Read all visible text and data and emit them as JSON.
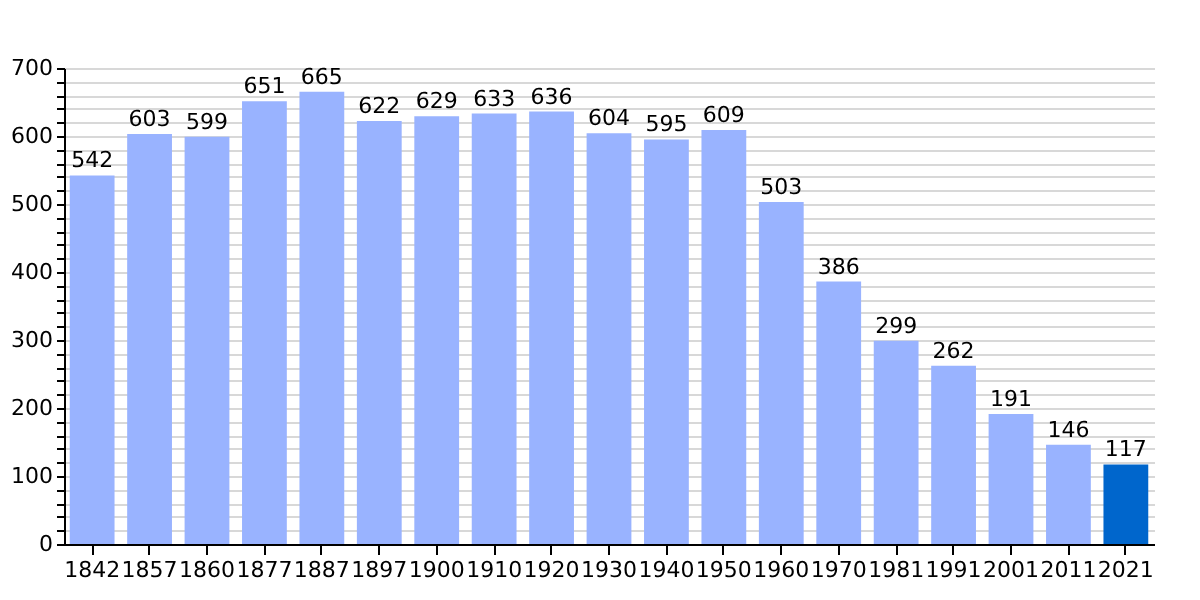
{
  "chart_data": {
    "type": "bar",
    "categories": [
      "1842",
      "1857",
      "1860",
      "1877",
      "1887",
      "1897",
      "1900",
      "1910",
      "1920",
      "1930",
      "1940",
      "1950",
      "1960",
      "1970",
      "1981",
      "1991",
      "2001",
      "2011",
      "2021"
    ],
    "values": [
      542,
      603,
      599,
      651,
      665,
      622,
      629,
      633,
      636,
      604,
      595,
      609,
      503,
      386,
      299,
      262,
      191,
      146,
      117
    ],
    "colors": [
      "#99b3ff",
      "#99b3ff",
      "#99b3ff",
      "#99b3ff",
      "#99b3ff",
      "#99b3ff",
      "#99b3ff",
      "#99b3ff",
      "#99b3ff",
      "#99b3ff",
      "#99b3ff",
      "#99b3ff",
      "#99b3ff",
      "#99b3ff",
      "#99b3ff",
      "#99b3ff",
      "#99b3ff",
      "#99b3ff",
      "#0066cc"
    ],
    "ylim": [
      0,
      700
    ],
    "yticks": [
      0,
      {
        "value": 20,
        "label": null
      },
      {
        "value": 40,
        "label": null
      },
      {
        "value": 60,
        "label": null
      },
      {
        "value": 80,
        "label": null
      },
      100,
      {
        "value": 120,
        "label": null
      },
      {
        "value": 140,
        "label": null
      },
      {
        "value": 160,
        "label": null
      },
      {
        "value": 180,
        "label": null
      },
      200,
      {
        "value": 220,
        "label": null
      },
      {
        "value": 240,
        "label": null
      },
      {
        "value": 260,
        "label": null
      },
      {
        "value": 280,
        "label": null
      },
      300,
      {
        "value": 320,
        "label": null
      },
      {
        "value": 340,
        "label": null
      },
      {
        "value": 360,
        "label": null
      },
      {
        "value": 380,
        "label": null
      },
      400,
      {
        "value": 420,
        "label": null
      },
      {
        "value": 440,
        "label": null
      },
      {
        "value": 460,
        "label": null
      },
      {
        "value": 480,
        "label": null
      },
      500,
      {
        "value": 520,
        "label": null
      },
      {
        "value": 540,
        "label": null
      },
      {
        "value": 560,
        "label": null
      },
      {
        "value": 580,
        "label": null
      },
      600,
      {
        "value": 620,
        "label": null
      },
      {
        "value": 640,
        "label": null
      },
      {
        "value": 660,
        "label": null
      },
      {
        "value": 680,
        "label": null
      },
      700
    ],
    "grid": true,
    "data_labels": true
  }
}
